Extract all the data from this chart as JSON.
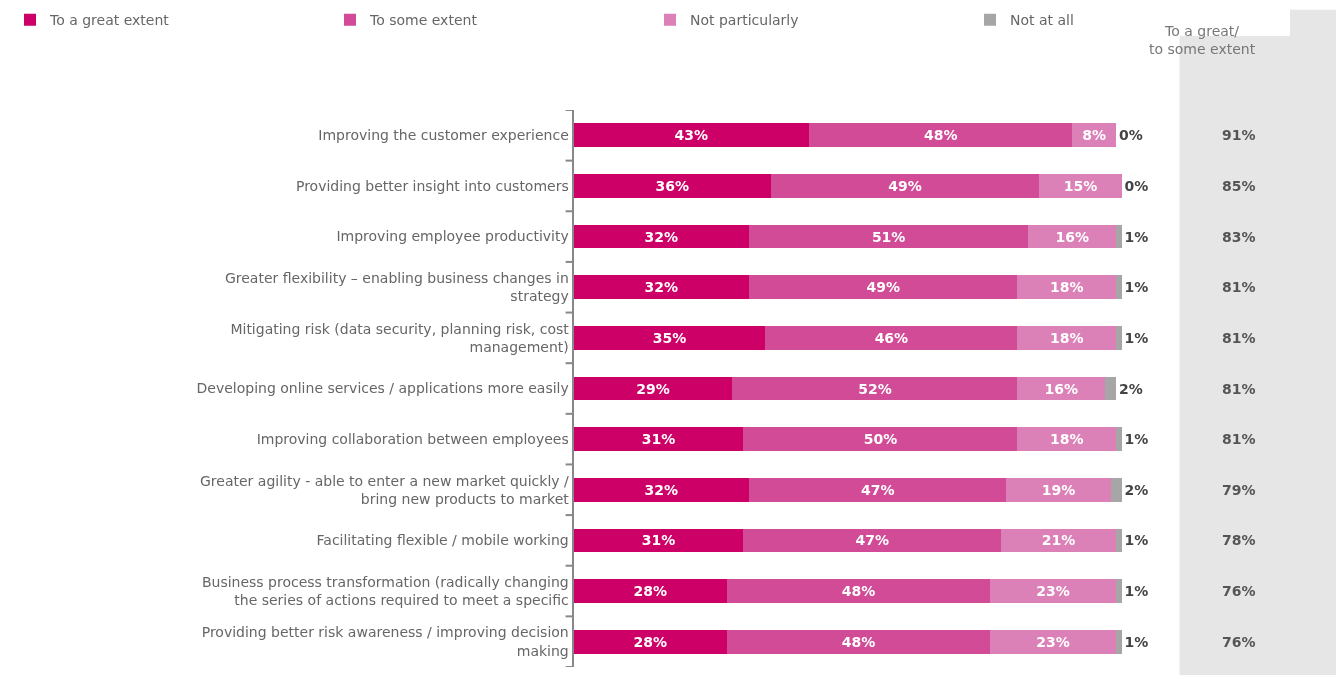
{
  "chart_data": {
    "type": "bar",
    "orientation": "horizontal",
    "stacked": true,
    "legend": "top left",
    "categories": [
      "Improving the customer experience",
      "Providing better insight into customers",
      "Improving employee productivity",
      "Greater flexibility – enabling business changes in strategy",
      "Mitigating risk (data security, planning risk, cost management)",
      "Developing online services / applications more easily",
      "Improving collaboration between employees",
      "Greater agility - able to enter a new market quickly / bring new products to market",
      "Facilitating flexible / mobile working",
      "Business process transformation (radically changing the series of actions required to meet a specific",
      "Providing better risk awareness / improving decision making"
    ],
    "series": [
      {
        "name": "To a great extent",
        "color": "#cc0066",
        "values": [
          43,
          36,
          32,
          32,
          35,
          29,
          31,
          32,
          31,
          28,
          28
        ],
        "value_labels": [
          "43%",
          "36%",
          "32%",
          "32%",
          "35%",
          "29%",
          "31%",
          "32%",
          "31%",
          "28%",
          "28%"
        ]
      },
      {
        "name": "To some extent",
        "color": "#d14b96",
        "values": [
          48,
          49,
          51,
          49,
          46,
          52,
          50,
          47,
          47,
          48,
          48
        ],
        "value_labels": [
          "48%",
          "49%",
          "51%",
          "49%",
          "46%",
          "52%",
          "50%",
          "47%",
          "47%",
          "48%",
          "48%"
        ]
      },
      {
        "name": "Not particularly",
        "color": "#dc80b8",
        "values": [
          8,
          15,
          16,
          18,
          18,
          16,
          18,
          19,
          21,
          23,
          23
        ],
        "value_labels": [
          "8%",
          "15%",
          "16%",
          "18%",
          "18%",
          "16%",
          "18%",
          "19%",
          "21%",
          "23%",
          "23%"
        ]
      },
      {
        "name": "Not at all",
        "color": "#a6a6a6",
        "values": [
          0,
          0,
          1,
          1,
          1,
          2,
          1,
          2,
          1,
          1,
          1
        ],
        "value_labels": [
          "0%",
          "0%",
          "1%",
          "1%",
          "1%",
          "2%",
          "1%",
          "2%",
          "1%",
          "1%",
          "1%"
        ]
      }
    ],
    "annotations": [
      "To a great/ to some extent",
      "91%",
      "85%",
      "83%",
      "81%",
      "81%",
      "81%",
      "81%",
      "79%",
      "78%",
      "76%",
      "76%"
    ]
  }
}
